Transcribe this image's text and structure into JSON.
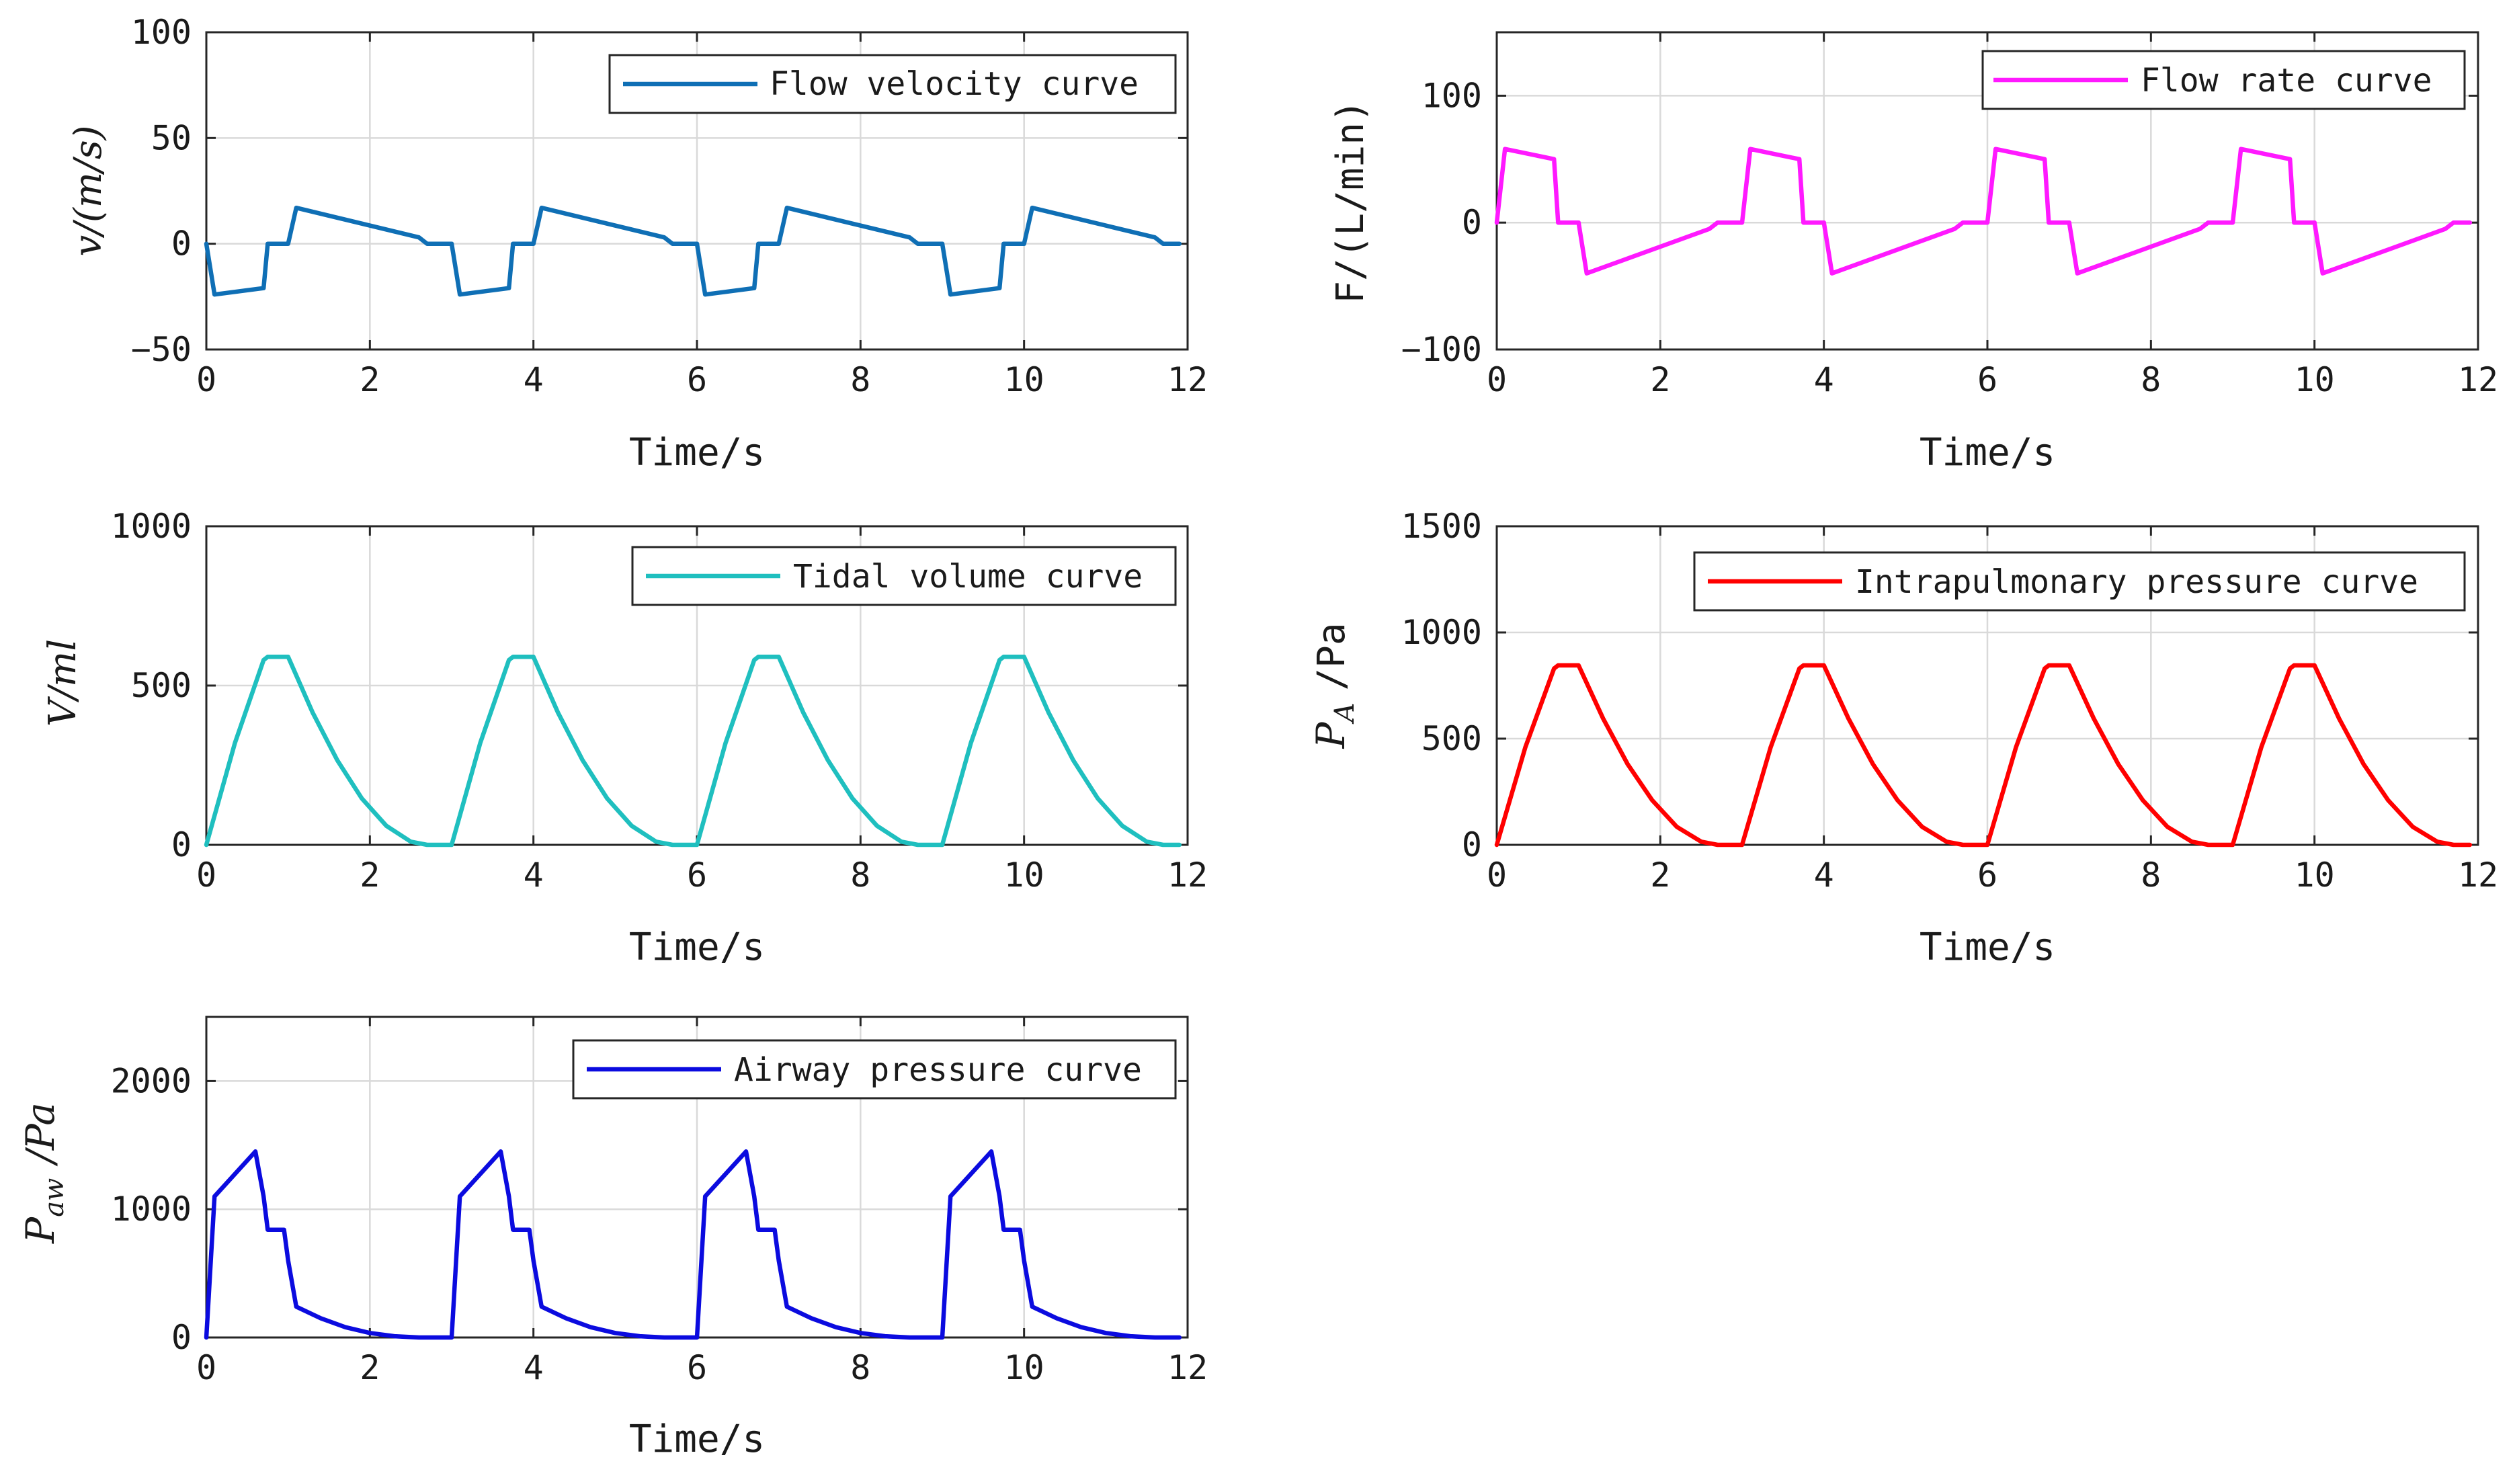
{
  "chart_data": [
    {
      "type": "line",
      "id": "velocity",
      "xlabel": "Time/s",
      "ylabel": "v/(m/s)",
      "xlim": [
        0,
        12
      ],
      "ylim": [
        -50,
        100
      ],
      "xticks": [
        0,
        2,
        4,
        6,
        8,
        10,
        12
      ],
      "yticks": [
        -50,
        0,
        50,
        100
      ],
      "xtick_labels": [
        "0",
        "2",
        "4",
        "6",
        "8",
        "10",
        "12"
      ],
      "ytick_labels": [
        "−50",
        "0",
        "50",
        "100"
      ],
      "legend_position": "top-right",
      "series": [
        {
          "name": "Flow velocity curve",
          "color": "#0f6fb5",
          "x": [
            0,
            0.1,
            0.7,
            0.75,
            0.95,
            1.0,
            1.1,
            2.6,
            2.7,
            3.0,
            3.1,
            3.7,
            3.75,
            3.95,
            4.0,
            4.1,
            5.6,
            5.7,
            6.0,
            6.1,
            6.7,
            6.75,
            6.95,
            7.0,
            7.1,
            8.6,
            8.7,
            9.0,
            9.1,
            9.7,
            9.75,
            9.95,
            10.0,
            10.1,
            11.6,
            11.7,
            11.9
          ],
          "y": [
            0,
            -24,
            -21,
            0,
            0,
            0,
            17,
            3,
            0,
            0,
            -24,
            -21,
            0,
            0,
            0,
            17,
            3,
            0,
            0,
            -24,
            -21,
            0,
            0,
            0,
            17,
            3,
            0,
            0,
            -24,
            -21,
            0,
            0,
            0,
            17,
            3,
            0,
            0
          ]
        }
      ]
    },
    {
      "type": "line",
      "id": "flowrate",
      "xlabel": "Time/s",
      "ylabel": "F/(L/min)",
      "xlim": [
        0,
        12
      ],
      "ylim": [
        -100,
        150
      ],
      "xticks": [
        0,
        2,
        4,
        6,
        8,
        10,
        12
      ],
      "yticks": [
        -100,
        0,
        100
      ],
      "xtick_labels": [
        "0",
        "2",
        "4",
        "6",
        "8",
        "10",
        "12"
      ],
      "ytick_labels": [
        "−100",
        "0",
        "100"
      ],
      "legend_position": "top-right",
      "series": [
        {
          "name": "Flow rate curve",
          "color": "#ff19ff",
          "x": [
            0,
            0.1,
            0.7,
            0.75,
            0.95,
            1.0,
            1.1,
            2.6,
            2.7,
            3.0,
            3.1,
            3.7,
            3.75,
            3.95,
            4.0,
            4.1,
            5.6,
            5.7,
            6.0,
            6.1,
            6.7,
            6.75,
            6.95,
            7.0,
            7.1,
            8.6,
            8.7,
            9.0,
            9.1,
            9.7,
            9.75,
            9.95,
            10.0,
            10.1,
            11.6,
            11.7,
            11.9
          ],
          "y": [
            0,
            58,
            50,
            0,
            0,
            0,
            -40,
            -5,
            0,
            0,
            58,
            50,
            0,
            0,
            0,
            -40,
            -5,
            0,
            0,
            58,
            50,
            0,
            0,
            0,
            -40,
            -5,
            0,
            0,
            58,
            50,
            0,
            0,
            0,
            -40,
            -5,
            0,
            0
          ]
        }
      ]
    },
    {
      "type": "line",
      "id": "tidal",
      "xlabel": "Time/s",
      "ylabel": "V/ml",
      "xlim": [
        0,
        12
      ],
      "ylim": [
        0,
        1000
      ],
      "xticks": [
        0,
        2,
        4,
        6,
        8,
        10,
        12
      ],
      "yticks": [
        0,
        500,
        1000
      ],
      "xtick_labels": [
        "0",
        "2",
        "4",
        "6",
        "8",
        "10",
        "12"
      ],
      "ytick_labels": [
        "0",
        "500",
        "1000"
      ],
      "legend_position": "top-right",
      "series": [
        {
          "name": "Tidal volume curve",
          "color": "#1fbfbf",
          "x": [
            0,
            0.35,
            0.7,
            0.75,
            1.0,
            1.3,
            1.6,
            1.9,
            2.2,
            2.5,
            2.7,
            3.0,
            3.35,
            3.7,
            3.75,
            4.0,
            4.3,
            4.6,
            4.9,
            5.2,
            5.5,
            5.7,
            6.0,
            6.35,
            6.7,
            6.75,
            7.0,
            7.3,
            7.6,
            7.9,
            8.2,
            8.5,
            8.7,
            9.0,
            9.35,
            9.7,
            9.75,
            10.0,
            10.3,
            10.6,
            10.9,
            11.2,
            11.5,
            11.7,
            11.9
          ],
          "y": [
            0,
            320,
            580,
            590,
            590,
            415,
            266,
            146,
            60,
            10,
            0,
            0,
            320,
            580,
            590,
            590,
            415,
            266,
            146,
            60,
            10,
            0,
            0,
            320,
            580,
            590,
            590,
            415,
            266,
            146,
            60,
            10,
            0,
            0,
            320,
            580,
            590,
            590,
            415,
            266,
            146,
            60,
            10,
            0,
            0
          ]
        }
      ]
    },
    {
      "type": "line",
      "id": "intrapulmonary",
      "xlabel": "Time/s",
      "ylabel_main": "P",
      "ylabel_sub": "A",
      "ylabel_unit": "/Pa",
      "xlim": [
        0,
        12
      ],
      "ylim": [
        0,
        1500
      ],
      "xticks": [
        0,
        2,
        4,
        6,
        8,
        10,
        12
      ],
      "yticks": [
        0,
        500,
        1000,
        1500
      ],
      "xtick_labels": [
        "0",
        "2",
        "4",
        "6",
        "8",
        "10",
        "12"
      ],
      "ytick_labels": [
        "0",
        "500",
        "1000",
        "1500"
      ],
      "legend_position": "top-right",
      "series": [
        {
          "name": "Intrapulmonary pressure curve",
          "color": "#ff0000",
          "x": [
            0,
            0.35,
            0.7,
            0.75,
            1.0,
            1.3,
            1.6,
            1.9,
            2.2,
            2.5,
            2.7,
            3.0,
            3.35,
            3.7,
            3.75,
            4.0,
            4.3,
            4.6,
            4.9,
            5.2,
            5.5,
            5.7,
            6.0,
            6.35,
            6.7,
            6.75,
            7.0,
            7.3,
            7.6,
            7.9,
            8.2,
            8.5,
            8.7,
            9.0,
            9.35,
            9.7,
            9.75,
            10.0,
            10.3,
            10.6,
            10.9,
            11.2,
            11.5,
            11.7,
            11.9
          ],
          "y": [
            0,
            460,
            830,
            845,
            845,
            595,
            380,
            210,
            85,
            15,
            0,
            0,
            460,
            830,
            845,
            845,
            595,
            380,
            210,
            85,
            15,
            0,
            0,
            460,
            830,
            845,
            845,
            595,
            380,
            210,
            85,
            15,
            0,
            0,
            460,
            830,
            845,
            845,
            595,
            380,
            210,
            85,
            15,
            0,
            0
          ]
        }
      ]
    },
    {
      "type": "line",
      "id": "airway",
      "xlabel": "Time/s",
      "ylabel_main": "P",
      "ylabel_sub": "aw",
      "ylabel_unit": "/Pa",
      "xlim": [
        0,
        12
      ],
      "ylim": [
        0,
        2500
      ],
      "xticks": [
        0,
        2,
        4,
        6,
        8,
        10,
        12
      ],
      "yticks": [
        0,
        1000,
        2000
      ],
      "xtick_labels": [
        "0",
        "2",
        "4",
        "6",
        "8",
        "10",
        "12"
      ],
      "ytick_labels": [
        "0",
        "1000",
        "2000"
      ],
      "legend_position": "top-right",
      "series": [
        {
          "name": "Airway pressure curve",
          "color": "#0b0bdf",
          "x": [
            0,
            0.1,
            0.6,
            0.7,
            0.75,
            0.95,
            1.0,
            1.1,
            1.4,
            1.7,
            2.0,
            2.3,
            2.6,
            3.0,
            3.1,
            3.6,
            3.7,
            3.75,
            3.95,
            4.0,
            4.1,
            4.4,
            4.7,
            5.0,
            5.3,
            5.6,
            6.0,
            6.1,
            6.6,
            6.7,
            6.75,
            6.95,
            7.0,
            7.1,
            7.4,
            7.7,
            8.0,
            8.3,
            8.6,
            9.0,
            9.1,
            9.6,
            9.7,
            9.75,
            9.95,
            10.0,
            10.1,
            10.4,
            10.7,
            11.0,
            11.3,
            11.6,
            11.9
          ],
          "y": [
            0,
            1100,
            1450,
            1100,
            840,
            840,
            600,
            240,
            150,
            80,
            35,
            10,
            0,
            0,
            1100,
            1450,
            1100,
            840,
            840,
            600,
            240,
            150,
            80,
            35,
            10,
            0,
            0,
            1100,
            1450,
            1100,
            840,
            840,
            600,
            240,
            150,
            80,
            35,
            10,
            0,
            0,
            1100,
            1450,
            1100,
            840,
            840,
            600,
            240,
            150,
            80,
            35,
            10,
            0,
            0
          ]
        }
      ]
    }
  ]
}
